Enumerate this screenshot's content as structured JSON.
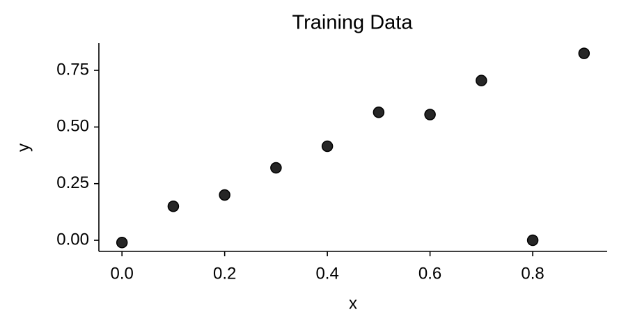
{
  "chart_data": {
    "type": "scatter",
    "title": "Training Data",
    "xlabel": "x",
    "ylabel": "y",
    "x": [
      0.0,
      0.1,
      0.2,
      0.3,
      0.4,
      0.5,
      0.6,
      0.7,
      0.8,
      0.9
    ],
    "values": [
      -0.01,
      0.15,
      0.2,
      0.32,
      0.415,
      0.565,
      0.555,
      0.705,
      0.0,
      0.825
    ],
    "color": "#262626",
    "xlim": [
      -0.045,
      0.945
    ],
    "xticks": [
      {
        "value": 0,
        "label": "0.0"
      },
      {
        "value": 0.2,
        "label": "0.2"
      },
      {
        "value": 0.4,
        "label": "0.4"
      },
      {
        "value": 0.6,
        "label": "0.6"
      },
      {
        "value": 0.8,
        "label": "0.8"
      }
    ],
    "ylim": [
      -0.049,
      0.87
    ],
    "yticks": [
      {
        "value": 0,
        "label": "0.00"
      },
      {
        "value": 0.25,
        "label": "0.25"
      },
      {
        "value": 0.5,
        "label": "0.50"
      },
      {
        "value": 0.75,
        "label": "0.75"
      }
    ],
    "grid": false
  }
}
